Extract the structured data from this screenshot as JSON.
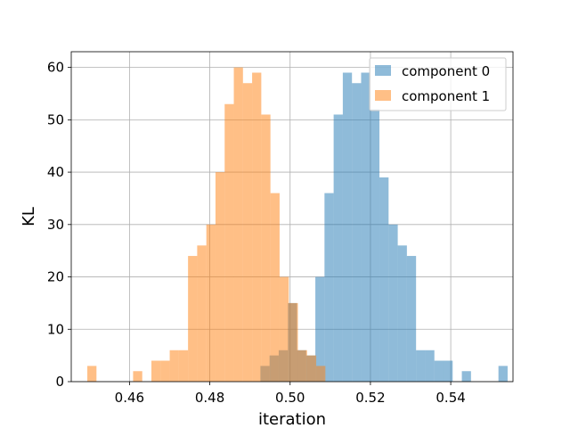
{
  "chart_data": {
    "type": "histogram",
    "xlabel": "iteration",
    "ylabel": "KL",
    "xlim": [
      0.4455,
      0.5555
    ],
    "ylim": [
      0,
      63
    ],
    "xticks": [
      0.46,
      0.48,
      0.5,
      0.52,
      0.54
    ],
    "xtick_labels": [
      "0.46",
      "0.48",
      "0.50",
      "0.52",
      "0.54"
    ],
    "yticks": [
      0,
      10,
      20,
      30,
      40,
      50,
      60
    ],
    "ytick_labels": [
      "0",
      "10",
      "20",
      "30",
      "40",
      "50",
      "60"
    ],
    "grid": true,
    "legend_position": "top-right",
    "bin_width": 0.00228,
    "series": [
      {
        "name": "component 0",
        "color": "#1f77b4",
        "alpha": 0.5,
        "bin_start": 0.4926,
        "counts": [
          3,
          5,
          6,
          15,
          6,
          5,
          20,
          36,
          51,
          59,
          57,
          59,
          52,
          39,
          30,
          26,
          24,
          6,
          6,
          4,
          4,
          0,
          2,
          0,
          0,
          0,
          3
        ]
      },
      {
        "name": "component 1",
        "color": "#ff7f0e",
        "alpha": 0.5,
        "bin_start": 0.4495,
        "counts": [
          3,
          0,
          0,
          0,
          0,
          2,
          0,
          4,
          4,
          6,
          6,
          24,
          26,
          30,
          40,
          53,
          60,
          57,
          59,
          51,
          36,
          20,
          15,
          6,
          5,
          3
        ]
      }
    ]
  }
}
